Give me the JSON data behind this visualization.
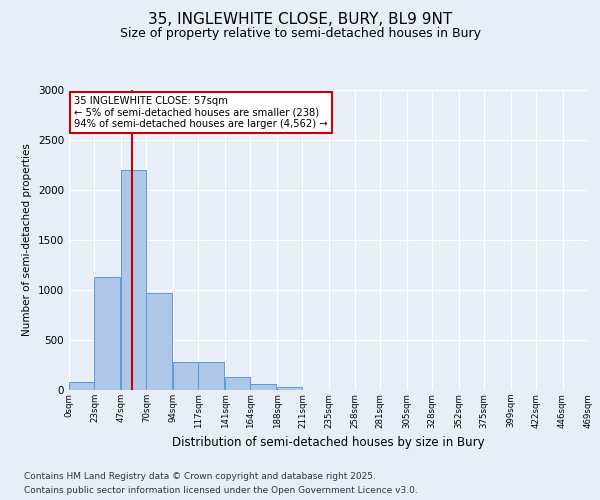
{
  "title": "35, INGLEWHITE CLOSE, BURY, BL9 9NT",
  "subtitle": "Size of property relative to semi-detached houses in Bury",
  "xlabel": "Distribution of semi-detached houses by size in Bury",
  "ylabel": "Number of semi-detached properties",
  "bin_labels": [
    "0sqm",
    "23sqm",
    "47sqm",
    "70sqm",
    "94sqm",
    "117sqm",
    "141sqm",
    "164sqm",
    "188sqm",
    "211sqm",
    "235sqm",
    "258sqm",
    "281sqm",
    "305sqm",
    "328sqm",
    "352sqm",
    "375sqm",
    "399sqm",
    "422sqm",
    "446sqm",
    "469sqm"
  ],
  "bin_edges": [
    0,
    23,
    47,
    70,
    94,
    117,
    141,
    164,
    188,
    211,
    235,
    258,
    281,
    305,
    328,
    352,
    375,
    399,
    422,
    446,
    469
  ],
  "bar_heights": [
    80,
    1130,
    2200,
    970,
    280,
    280,
    130,
    60,
    30,
    5,
    0,
    0,
    0,
    0,
    0,
    0,
    0,
    0,
    0,
    0
  ],
  "bar_color": "#aec6e8",
  "bar_edge_color": "#5b9bd5",
  "vline_x": 57,
  "vline_color": "#cc0000",
  "annotation_text": "35 INGLEWHITE CLOSE: 57sqm\n← 5% of semi-detached houses are smaller (238)\n94% of semi-detached houses are larger (4,562) →",
  "annotation_box_color": "#cc0000",
  "ylim": [
    0,
    3000
  ],
  "yticks": [
    0,
    500,
    1000,
    1500,
    2000,
    2500,
    3000
  ],
  "background_color": "#e8eef7",
  "plot_bg_color": "#e8eef7",
  "footer_line1": "Contains HM Land Registry data © Crown copyright and database right 2025.",
  "footer_line2": "Contains public sector information licensed under the Open Government Licence v3.0.",
  "title_fontsize": 11,
  "subtitle_fontsize": 9,
  "footer_fontsize": 6.5
}
